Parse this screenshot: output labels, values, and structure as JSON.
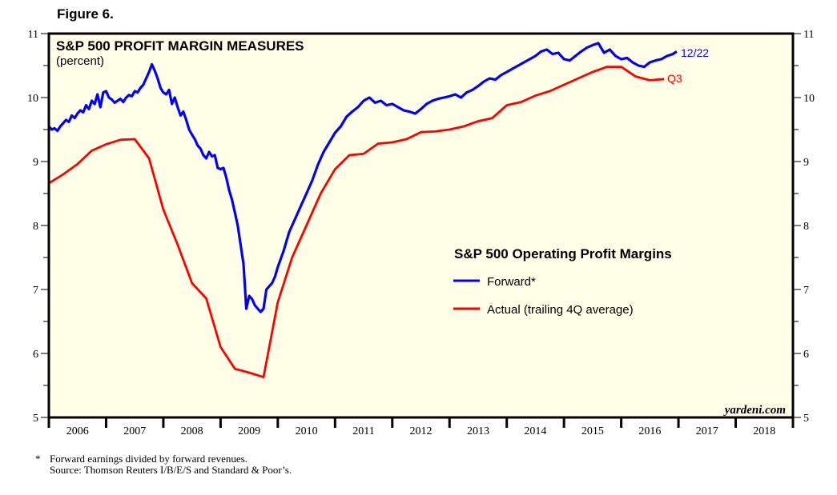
{
  "figure_label": "Figure 6.",
  "footnotes": {
    "marker": "*",
    "line1": "Forward earnings divided by forward revenues.",
    "line2": "Source: Thomson Reuters I/B/E/S and Standard & Poor’s."
  },
  "colors": {
    "plot_background": "#fffee6",
    "forward": "#0000ff",
    "actual": "#ff0000",
    "frame": "#000000"
  },
  "chart_data": {
    "type": "line",
    "title": "S&P 500 PROFIT MARGIN MEASURES",
    "subtitle": "(percent)",
    "xlabel": "",
    "ylabel": "percent",
    "xlim": [
      2006.0,
      2019.0
    ],
    "ylim": [
      5,
      11
    ],
    "y_ticks": [
      5,
      6,
      7,
      8,
      9,
      10,
      11
    ],
    "y_tick_labels": [
      "5",
      "6",
      "7",
      "8",
      "9",
      "10",
      "11"
    ],
    "y_minor_step": 0.5,
    "x_tick_labels": [
      "2006",
      "2007",
      "2008",
      "2009",
      "2010",
      "2011",
      "2012",
      "2013",
      "2014",
      "2015",
      "2016",
      "2017",
      "2018"
    ],
    "y_axis_both_sides": true,
    "grid": false,
    "watermark": "yardeni.com",
    "legend": {
      "title": "S&P 500 Operating Profit Margins",
      "position": "center-right",
      "entries": [
        "Forward*",
        "Actual (trailing 4Q average)"
      ]
    },
    "series": [
      {
        "name": "Forward*",
        "color": "#0000ff",
        "end_label": "12/22",
        "x": [
          2006.0,
          2006.05,
          2006.1,
          2006.15,
          2006.2,
          2006.25,
          2006.3,
          2006.35,
          2006.4,
          2006.45,
          2006.5,
          2006.55,
          2006.6,
          2006.65,
          2006.7,
          2006.75,
          2006.8,
          2006.85,
          2006.9,
          2006.95,
          2007.0,
          2007.05,
          2007.1,
          2007.15,
          2007.2,
          2007.25,
          2007.3,
          2007.35,
          2007.4,
          2007.45,
          2007.5,
          2007.55,
          2007.6,
          2007.65,
          2007.7,
          2007.75,
          2007.8,
          2007.85,
          2007.9,
          2007.95,
          2008.0,
          2008.05,
          2008.1,
          2008.15,
          2008.2,
          2008.25,
          2008.3,
          2008.35,
          2008.4,
          2008.45,
          2008.5,
          2008.55,
          2008.6,
          2008.65,
          2008.7,
          2008.75,
          2008.8,
          2008.85,
          2008.9,
          2008.95,
          2009.0,
          2009.05,
          2009.1,
          2009.15,
          2009.2,
          2009.25,
          2009.3,
          2009.35,
          2009.4,
          2009.45,
          2009.5,
          2009.55,
          2009.6,
          2009.65,
          2009.7,
          2009.75,
          2009.8,
          2009.85,
          2009.9,
          2009.95,
          2010.0,
          2010.1,
          2010.2,
          2010.3,
          2010.4,
          2010.5,
          2010.6,
          2010.7,
          2010.8,
          2010.9,
          2011.0,
          2011.1,
          2011.2,
          2011.3,
          2011.4,
          2011.5,
          2011.6,
          2011.7,
          2011.8,
          2011.9,
          2012.0,
          2012.1,
          2012.2,
          2012.3,
          2012.4,
          2012.5,
          2012.6,
          2012.7,
          2012.8,
          2012.9,
          2013.0,
          2013.1,
          2013.2,
          2013.3,
          2013.4,
          2013.5,
          2013.6,
          2013.7,
          2013.8,
          2013.9,
          2014.0,
          2014.1,
          2014.2,
          2014.3,
          2014.4,
          2014.5,
          2014.6,
          2014.7,
          2014.8,
          2014.9,
          2015.0,
          2015.1,
          2015.2,
          2015.3,
          2015.4,
          2015.5,
          2015.6,
          2015.7,
          2015.8,
          2015.9,
          2016.0,
          2016.1,
          2016.2,
          2016.3,
          2016.4,
          2016.5,
          2016.6,
          2016.7,
          2016.8,
          2016.9,
          2016.97
        ],
        "values": [
          9.55,
          9.5,
          9.52,
          9.48,
          9.55,
          9.6,
          9.65,
          9.62,
          9.72,
          9.68,
          9.75,
          9.8,
          9.77,
          9.88,
          9.82,
          9.95,
          9.9,
          10.05,
          9.85,
          10.08,
          10.1,
          10.0,
          9.97,
          9.92,
          9.95,
          9.98,
          9.93,
          10.0,
          10.04,
          10.02,
          10.1,
          10.08,
          10.15,
          10.2,
          10.3,
          10.4,
          10.52,
          10.42,
          10.3,
          10.15,
          10.08,
          10.05,
          10.12,
          9.9,
          10.0,
          9.85,
          9.72,
          9.78,
          9.65,
          9.5,
          9.42,
          9.35,
          9.25,
          9.2,
          9.1,
          9.05,
          9.15,
          9.08,
          9.1,
          8.9,
          8.88,
          8.9,
          8.75,
          8.55,
          8.4,
          8.2,
          8.0,
          7.7,
          7.4,
          6.7,
          6.9,
          6.85,
          6.75,
          6.7,
          6.65,
          6.7,
          7.0,
          7.05,
          7.1,
          7.2,
          7.35,
          7.6,
          7.9,
          8.1,
          8.3,
          8.5,
          8.7,
          8.95,
          9.15,
          9.3,
          9.45,
          9.55,
          9.7,
          9.78,
          9.85,
          9.95,
          10.0,
          9.92,
          9.95,
          9.88,
          9.9,
          9.85,
          9.8,
          9.78,
          9.75,
          9.82,
          9.9,
          9.95,
          9.98,
          10.0,
          10.02,
          10.05,
          10.0,
          10.08,
          10.12,
          10.18,
          10.25,
          10.3,
          10.28,
          10.35,
          10.4,
          10.45,
          10.5,
          10.55,
          10.6,
          10.65,
          10.72,
          10.75,
          10.68,
          10.7,
          10.6,
          10.58,
          10.65,
          10.72,
          10.78,
          10.82,
          10.85,
          10.7,
          10.75,
          10.65,
          10.6,
          10.62,
          10.55,
          10.5,
          10.48,
          10.55,
          10.58,
          10.6,
          10.65,
          10.68,
          10.72
        ]
      },
      {
        "name": "Actual (trailing 4Q average)",
        "color": "#ff0000",
        "end_label": "Q3",
        "x": [
          2006.0,
          2006.25,
          2006.5,
          2006.75,
          2007.0,
          2007.25,
          2007.5,
          2007.75,
          2008.0,
          2008.25,
          2008.5,
          2008.75,
          2009.0,
          2009.25,
          2009.5,
          2009.75,
          2010.0,
          2010.25,
          2010.5,
          2010.75,
          2011.0,
          2011.25,
          2011.5,
          2011.75,
          2012.0,
          2012.25,
          2012.5,
          2012.75,
          2013.0,
          2013.25,
          2013.5,
          2013.75,
          2014.0,
          2014.25,
          2014.5,
          2014.75,
          2015.0,
          2015.25,
          2015.5,
          2015.75,
          2016.0,
          2016.25,
          2016.5
        ],
        "values": [
          8.66,
          8.8,
          8.96,
          9.17,
          9.27,
          9.34,
          9.35,
          9.05,
          8.25,
          7.7,
          7.1,
          6.86,
          6.1,
          5.76,
          5.7,
          5.63,
          6.8,
          7.5,
          8.0,
          8.5,
          8.88,
          9.1,
          9.12,
          9.28,
          9.3,
          9.35,
          9.46,
          9.47,
          9.5,
          9.55,
          9.63,
          9.68,
          9.88,
          9.93,
          10.03,
          10.1,
          10.2,
          10.3,
          10.4,
          10.48,
          10.48,
          10.33,
          10.27
        ],
        "extra_point_note": "last point 2016.75 = 10.29"
      }
    ]
  }
}
